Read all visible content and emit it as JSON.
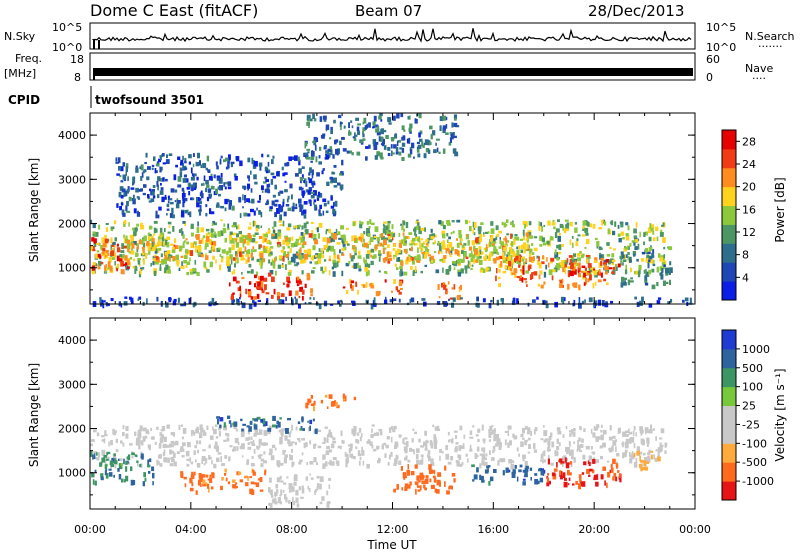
{
  "header": {
    "station": "Dome C East (fitACF)",
    "beam": "Beam 07",
    "date": "28/Dec/2013"
  },
  "strip_labels": {
    "nsky": "N.Sky",
    "freq_line1": "Freq.",
    "freq_line2": "[MHz]",
    "cpid": "CPID",
    "nsearch": "N.Search",
    "nsearch_dots": "·······",
    "nave": "Nave",
    "nave_dots": "····",
    "nsky_ticks": [
      "10^5",
      "10^0"
    ],
    "freq_ticks": [
      "18",
      "8"
    ],
    "nsearch_ticks": [
      "10^5",
      "10^0"
    ],
    "nave_ticks": [
      "60",
      "0"
    ],
    "cpid_value": "twofsound 3501"
  },
  "colors": {
    "power_scale": [
      "#0a1ee6",
      "#1e46b4",
      "#2d6e8c",
      "#4b9664",
      "#8cc83c",
      "#ffd21e",
      "#ff8c1e",
      "#f03c14",
      "#e60000"
    ],
    "velocity_scale": [
      "#1e3cd2",
      "#2d64a0",
      "#3c9664",
      "#78c83c",
      "#c8c8c8",
      "#c8c8c8",
      "#ffaa3c",
      "#ff6a1e",
      "#e61414"
    ],
    "ground_scatter": "#c8c8c8"
  },
  "icons": {
    "nsearch_legend": "dotted-line-icon",
    "nave_legend": "dotted-line-icon"
  },
  "chart_data": [
    {
      "type": "heatmap",
      "title": "",
      "xlabel": "",
      "ylabel": "Slant Range [km]",
      "xlim": [
        "00:00",
        "24:00"
      ],
      "ylim": [
        180,
        4500
      ],
      "x_ticks": [
        "00:00",
        "04:00",
        "08:00",
        "12:00",
        "16:00",
        "20:00",
        "00:00"
      ],
      "y_ticks": [
        "1000",
        "2000",
        "3000",
        "4000"
      ],
      "colorbar_label": "Power [dB]",
      "colorbar_ticks": [
        "4",
        "8",
        "12",
        "16",
        "20",
        "24",
        "28"
      ],
      "colorbar_range": [
        0,
        30
      ],
      "regions": [
        {
          "t0": 0.0,
          "t1": 22.8,
          "r0": 900,
          "r1": 2100,
          "value": 14
        },
        {
          "t0": 1.0,
          "t1": 17.5,
          "r0": 1150,
          "r1": 1800,
          "value": 19
        },
        {
          "t0": 0.0,
          "t1": 1.5,
          "r0": 950,
          "r1": 1700,
          "value": 24
        },
        {
          "t0": 5.5,
          "t1": 8.8,
          "r0": 350,
          "r1": 900,
          "value": 26
        },
        {
          "t0": 10.0,
          "t1": 12.3,
          "r0": 450,
          "r1": 750,
          "value": 23
        },
        {
          "t0": 13.5,
          "t1": 14.7,
          "r0": 300,
          "r1": 700,
          "value": 22
        },
        {
          "t0": 16.0,
          "t1": 20.5,
          "r0": 600,
          "r1": 1300,
          "value": 22
        },
        {
          "t0": 19.0,
          "t1": 21.0,
          "r0": 850,
          "r1": 1150,
          "value": 26
        },
        {
          "t0": 21.0,
          "t1": 23.0,
          "r0": 600,
          "r1": 1500,
          "value": 10
        },
        {
          "t0": 1.0,
          "t1": 10.0,
          "r0": 2200,
          "r1": 3600,
          "value": 6
        },
        {
          "t0": 8.5,
          "t1": 14.5,
          "r0": 3500,
          "r1": 4500,
          "value": 8
        },
        {
          "t0": 0.0,
          "t1": 24.0,
          "r0": 180,
          "r1": 350,
          "value": 5
        }
      ]
    },
    {
      "type": "heatmap",
      "title": "",
      "xlabel": "Time UT",
      "ylabel": "Slant Range [km]",
      "xlim": [
        "00:00",
        "24:00"
      ],
      "ylim": [
        180,
        4500
      ],
      "x_ticks": [
        "00:00",
        "04:00",
        "08:00",
        "12:00",
        "16:00",
        "20:00",
        "00:00"
      ],
      "y_ticks": [
        "1000",
        "2000",
        "3000",
        "4000"
      ],
      "colorbar_label": "Velocity [m s⁻¹]",
      "colorbar_ticks": [
        "1000",
        "500",
        "100",
        "25",
        "-25",
        "-100",
        "-500",
        "-1000"
      ],
      "regions": [
        {
          "t0": 0.0,
          "t1": 22.8,
          "r0": 1200,
          "r1": 2100,
          "value": 0,
          "ground_scatter": true
        },
        {
          "t0": 0.0,
          "t1": 2.5,
          "r0": 800,
          "r1": 1500,
          "value": 150
        },
        {
          "t0": 3.5,
          "t1": 7.0,
          "r0": 600,
          "r1": 1100,
          "value": -200
        },
        {
          "t0": 7.0,
          "t1": 9.5,
          "r0": 300,
          "r1": 1000,
          "value": 0,
          "ground_scatter": true
        },
        {
          "t0": 12.0,
          "t1": 14.5,
          "r0": 600,
          "r1": 1200,
          "value": -300
        },
        {
          "t0": 15.0,
          "t1": 18.0,
          "r0": 800,
          "r1": 1200,
          "value": 300
        },
        {
          "t0": 18.0,
          "t1": 21.0,
          "r0": 750,
          "r1": 1350,
          "value": -450
        },
        {
          "t0": 21.5,
          "t1": 22.5,
          "r0": 1100,
          "r1": 1500,
          "value": -150
        },
        {
          "t0": 8.5,
          "t1": 10.5,
          "r0": 2500,
          "r1": 2800,
          "value": -200
        },
        {
          "t0": 5.0,
          "t1": 9.0,
          "r0": 2000,
          "r1": 2300,
          "value": 300
        }
      ]
    }
  ]
}
